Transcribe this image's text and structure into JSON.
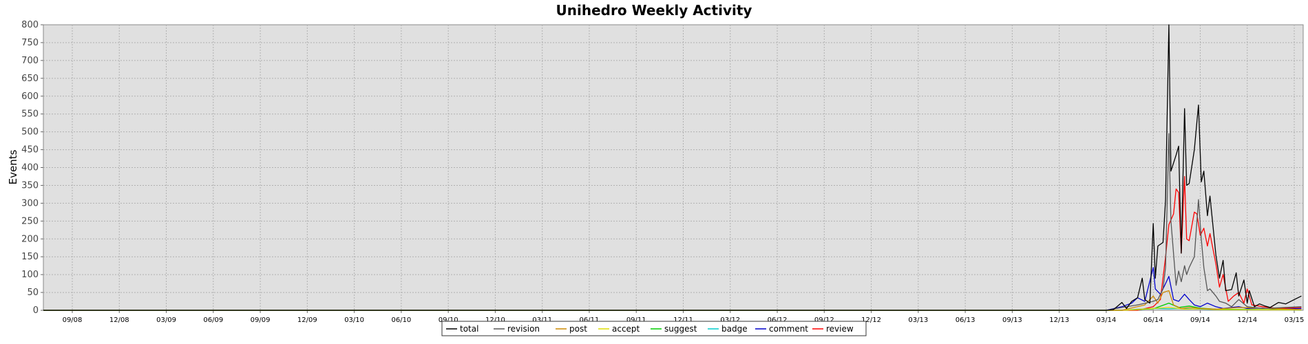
{
  "chart_data": {
    "type": "line",
    "title": "Unihedro Weekly Activity",
    "xlabel": "",
    "ylabel": "Events",
    "ylim": [
      0,
      800
    ],
    "yticks": [
      0,
      50,
      100,
      150,
      200,
      250,
      300,
      350,
      400,
      450,
      500,
      550,
      600,
      650,
      700,
      750,
      800
    ],
    "x_tick_labels": [
      "09/08",
      "12/08",
      "03/09",
      "06/09",
      "09/09",
      "12/09",
      "03/10",
      "06/10",
      "09/10",
      "12/10",
      "03/11",
      "06/11",
      "09/11",
      "12/11",
      "03/12",
      "06/12",
      "09/12",
      "12/12",
      "03/13",
      "06/13",
      "09/13",
      "12/13",
      "03/14",
      "06/14",
      "09/14",
      "12/14",
      "03/15"
    ],
    "x_range_months": [
      "2008-09",
      "2015-03"
    ],
    "grid": true,
    "legend_position": "bottom-center",
    "background": "#e0e0e0",
    "series": [
      {
        "name": "total",
        "color": "#000000",
        "points": [
          [
            "2008-07-01",
            0
          ],
          [
            "2014-03-01",
            0
          ],
          [
            "2014-03-15",
            2
          ],
          [
            "2014-04-01",
            22
          ],
          [
            "2014-04-10",
            5
          ],
          [
            "2014-04-20",
            25
          ],
          [
            "2014-05-01",
            35
          ],
          [
            "2014-05-10",
            90
          ],
          [
            "2014-05-15",
            30
          ],
          [
            "2014-05-25",
            20
          ],
          [
            "2014-06-01",
            243
          ],
          [
            "2014-06-05",
            90
          ],
          [
            "2014-06-10",
            180
          ],
          [
            "2014-06-20",
            190
          ],
          [
            "2014-06-25",
            310
          ],
          [
            "2014-07-01",
            800
          ],
          [
            "2014-07-05",
            390
          ],
          [
            "2014-07-15",
            435
          ],
          [
            "2014-07-20",
            460
          ],
          [
            "2014-07-25",
            160
          ],
          [
            "2014-08-01",
            565
          ],
          [
            "2014-08-05",
            350
          ],
          [
            "2014-08-10",
            355
          ],
          [
            "2014-08-20",
            450
          ],
          [
            "2014-08-28",
            575
          ],
          [
            "2014-09-03",
            360
          ],
          [
            "2014-09-08",
            390
          ],
          [
            "2014-09-15",
            265
          ],
          [
            "2014-09-20",
            320
          ],
          [
            "2014-10-01",
            155
          ],
          [
            "2014-10-08",
            90
          ],
          [
            "2014-10-15",
            140
          ],
          [
            "2014-10-20",
            55
          ],
          [
            "2014-11-01",
            58
          ],
          [
            "2014-11-10",
            105
          ],
          [
            "2014-11-15",
            40
          ],
          [
            "2014-11-25",
            85
          ],
          [
            "2014-12-01",
            20
          ],
          [
            "2014-12-05",
            55
          ],
          [
            "2014-12-15",
            10
          ],
          [
            "2014-12-25",
            18
          ],
          [
            "2015-01-05",
            12
          ],
          [
            "2015-01-15",
            8
          ],
          [
            "2015-02-01",
            22
          ],
          [
            "2015-02-15",
            18
          ],
          [
            "2015-03-01",
            30
          ],
          [
            "2015-03-15",
            40
          ]
        ]
      },
      {
        "name": "revision",
        "color": "#555555",
        "points": [
          [
            "2008-07-01",
            0
          ],
          [
            "2014-03-01",
            0
          ],
          [
            "2014-04-01",
            8
          ],
          [
            "2014-05-01",
            15
          ],
          [
            "2014-06-01",
            25
          ],
          [
            "2014-06-10",
            30
          ],
          [
            "2014-06-20",
            60
          ],
          [
            "2014-06-25",
            120
          ],
          [
            "2014-07-01",
            495
          ],
          [
            "2014-07-05",
            250
          ],
          [
            "2014-07-15",
            70
          ],
          [
            "2014-07-20",
            110
          ],
          [
            "2014-07-25",
            80
          ],
          [
            "2014-08-01",
            125
          ],
          [
            "2014-08-05",
            100
          ],
          [
            "2014-08-10",
            120
          ],
          [
            "2014-08-20",
            150
          ],
          [
            "2014-08-28",
            310
          ],
          [
            "2014-09-03",
            200
          ],
          [
            "2014-09-08",
            120
          ],
          [
            "2014-09-15",
            55
          ],
          [
            "2014-09-20",
            60
          ],
          [
            "2014-10-01",
            40
          ],
          [
            "2014-10-08",
            25
          ],
          [
            "2014-10-20",
            20
          ],
          [
            "2014-11-01",
            10
          ],
          [
            "2014-11-15",
            30
          ],
          [
            "2014-12-01",
            10
          ],
          [
            "2015-01-01",
            5
          ],
          [
            "2015-03-15",
            10
          ]
        ]
      },
      {
        "name": "post",
        "color": "#cc8800",
        "points": [
          [
            "2008-07-01",
            0
          ],
          [
            "2014-04-01",
            0
          ],
          [
            "2014-05-15",
            15
          ],
          [
            "2014-06-01",
            40
          ],
          [
            "2014-06-10",
            20
          ],
          [
            "2014-06-20",
            50
          ],
          [
            "2014-07-01",
            55
          ],
          [
            "2014-07-10",
            15
          ],
          [
            "2014-07-25",
            5
          ],
          [
            "2014-08-10",
            8
          ],
          [
            "2014-09-01",
            5
          ],
          [
            "2014-10-01",
            3
          ],
          [
            "2014-11-15",
            8
          ],
          [
            "2015-03-15",
            2
          ]
        ]
      },
      {
        "name": "accept",
        "color": "#dddd00",
        "points": [
          [
            "2008-07-01",
            0
          ],
          [
            "2014-04-01",
            0
          ],
          [
            "2014-06-01",
            5
          ],
          [
            "2014-07-01",
            8
          ],
          [
            "2014-08-01",
            3
          ],
          [
            "2014-09-01",
            4
          ],
          [
            "2014-10-01",
            2
          ],
          [
            "2015-03-15",
            1
          ]
        ]
      },
      {
        "name": "suggest",
        "color": "#00cc00",
        "points": [
          [
            "2008-07-01",
            0
          ],
          [
            "2014-04-01",
            0
          ],
          [
            "2014-06-01",
            4
          ],
          [
            "2014-07-01",
            20
          ],
          [
            "2014-07-20",
            8
          ],
          [
            "2014-08-10",
            12
          ],
          [
            "2014-09-01",
            6
          ],
          [
            "2014-10-01",
            3
          ],
          [
            "2015-03-15",
            1
          ]
        ]
      },
      {
        "name": "badge",
        "color": "#00cccc",
        "points": [
          [
            "2008-07-01",
            0
          ],
          [
            "2014-04-01",
            0
          ],
          [
            "2014-05-01",
            3
          ],
          [
            "2014-06-01",
            5
          ],
          [
            "2014-07-01",
            4
          ],
          [
            "2014-08-01",
            5
          ],
          [
            "2014-09-01",
            3
          ],
          [
            "2014-10-01",
            2
          ],
          [
            "2015-03-15",
            1
          ]
        ]
      },
      {
        "name": "comment",
        "color": "#0000cc",
        "points": [
          [
            "2008-07-01",
            0
          ],
          [
            "2014-03-01",
            0
          ],
          [
            "2014-04-01",
            10
          ],
          [
            "2014-04-20",
            20
          ],
          [
            "2014-05-01",
            35
          ],
          [
            "2014-05-15",
            25
          ],
          [
            "2014-06-01",
            120
          ],
          [
            "2014-06-05",
            60
          ],
          [
            "2014-06-15",
            45
          ],
          [
            "2014-06-25",
            75
          ],
          [
            "2014-07-01",
            95
          ],
          [
            "2014-07-10",
            30
          ],
          [
            "2014-07-20",
            25
          ],
          [
            "2014-08-01",
            45
          ],
          [
            "2014-08-10",
            30
          ],
          [
            "2014-08-20",
            15
          ],
          [
            "2014-09-01",
            10
          ],
          [
            "2014-09-15",
            20
          ],
          [
            "2014-10-01",
            10
          ],
          [
            "2014-10-15",
            5
          ],
          [
            "2014-11-01",
            8
          ],
          [
            "2014-11-15",
            10
          ],
          [
            "2014-12-01",
            5
          ],
          [
            "2015-01-01",
            6
          ],
          [
            "2015-02-01",
            3
          ],
          [
            "2015-03-15",
            5
          ]
        ]
      },
      {
        "name": "review",
        "color": "#ff0000",
        "points": [
          [
            "2008-07-01",
            0
          ],
          [
            "2014-05-01",
            0
          ],
          [
            "2014-06-01",
            10
          ],
          [
            "2014-06-15",
            30
          ],
          [
            "2014-06-25",
            150
          ],
          [
            "2014-07-01",
            240
          ],
          [
            "2014-07-10",
            270
          ],
          [
            "2014-07-15",
            340
          ],
          [
            "2014-07-20",
            330
          ],
          [
            "2014-07-25",
            160
          ],
          [
            "2014-08-01",
            375
          ],
          [
            "2014-08-05",
            200
          ],
          [
            "2014-08-10",
            195
          ],
          [
            "2014-08-20",
            275
          ],
          [
            "2014-08-25",
            270
          ],
          [
            "2014-09-01",
            210
          ],
          [
            "2014-09-08",
            230
          ],
          [
            "2014-09-15",
            180
          ],
          [
            "2014-09-20",
            215
          ],
          [
            "2014-10-01",
            130
          ],
          [
            "2014-10-08",
            65
          ],
          [
            "2014-10-15",
            100
          ],
          [
            "2014-10-25",
            25
          ],
          [
            "2014-11-05",
            40
          ],
          [
            "2014-11-15",
            50
          ],
          [
            "2014-11-25",
            20
          ],
          [
            "2014-12-01",
            60
          ],
          [
            "2014-12-10",
            15
          ],
          [
            "2015-01-01",
            10
          ],
          [
            "2015-02-01",
            5
          ],
          [
            "2015-03-15",
            8
          ]
        ]
      }
    ]
  }
}
